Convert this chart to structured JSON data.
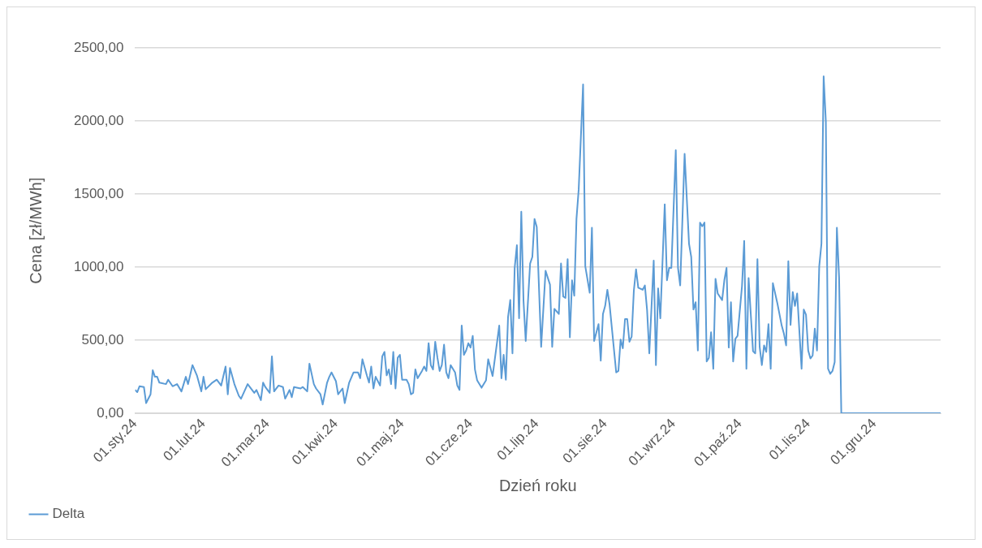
{
  "chart_data": {
    "type": "line",
    "xlabel": "Dzień roku",
    "ylabel": "Cena [zł/MWh]",
    "legend": "bottom left",
    "grid": "y",
    "marker": "none",
    "line_style": "solid",
    "xlim": [
      "2024-01-01",
      "2024-12-31"
    ],
    "xticks": [
      {
        "value": "2024-01-01",
        "label": "01.sty.24"
      },
      {
        "value": "2024-02-01",
        "label": "01.lut.24"
      },
      {
        "value": "2024-03-01",
        "label": "01.mar.24"
      },
      {
        "value": "2024-04-01",
        "label": "01.kwi.24"
      },
      {
        "value": "2024-05-01",
        "label": "01.maj.24"
      },
      {
        "value": "2024-06-01",
        "label": "01.cze.24"
      },
      {
        "value": "2024-07-01",
        "label": "01.lip.24"
      },
      {
        "value": "2024-08-01",
        "label": "01.sie.24"
      },
      {
        "value": "2024-09-01",
        "label": "01.wrz.24"
      },
      {
        "value": "2024-10-01",
        "label": "01.paź.24"
      },
      {
        "value": "2024-11-01",
        "label": "01.lis.24"
      },
      {
        "value": "2024-12-01",
        "label": "01.gru.24"
      }
    ],
    "ylim": [
      0,
      2500
    ],
    "yticks": [
      {
        "value": 0,
        "label": "0,00"
      },
      {
        "value": 500,
        "label": "500,00"
      },
      {
        "value": 1000,
        "label": "1000,00"
      },
      {
        "value": 1500,
        "label": "1500,00"
      },
      {
        "value": 2000,
        "label": "2000,00"
      },
      {
        "value": 2500,
        "label": "2500,00"
      }
    ],
    "series": [
      {
        "name": "Delta",
        "color": "#5b9bd5",
        "x": [
          "2024-01-01",
          "2024-01-02",
          "2024-01-03",
          "2024-01-05",
          "2024-01-06",
          "2024-01-08",
          "2024-01-09",
          "2024-01-10",
          "2024-01-11",
          "2024-01-12",
          "2024-01-15",
          "2024-01-16",
          "2024-01-18",
          "2024-01-20",
          "2024-01-22",
          "2024-01-24",
          "2024-01-25",
          "2024-01-27",
          "2024-01-29",
          "2024-01-31",
          "2024-02-01",
          "2024-02-02",
          "2024-02-05",
          "2024-02-07",
          "2024-02-09",
          "2024-02-11",
          "2024-02-12",
          "2024-02-13",
          "2024-02-15",
          "2024-02-17",
          "2024-02-18",
          "2024-02-21",
          "2024-02-24",
          "2024-02-25",
          "2024-02-27",
          "2024-02-28",
          "2024-02-29",
          "2024-03-02",
          "2024-03-03",
          "2024-03-04",
          "2024-03-06",
          "2024-03-08",
          "2024-03-09",
          "2024-03-11",
          "2024-03-12",
          "2024-03-13",
          "2024-03-16",
          "2024-03-17",
          "2024-03-19",
          "2024-03-20",
          "2024-03-22",
          "2024-03-23",
          "2024-03-25",
          "2024-03-26",
          "2024-03-28",
          "2024-03-29",
          "2024-03-30",
          "2024-04-01",
          "2024-04-02",
          "2024-04-04",
          "2024-04-05",
          "2024-04-07",
          "2024-04-09",
          "2024-04-11",
          "2024-04-12",
          "2024-04-13",
          "2024-04-15",
          "2024-04-16",
          "2024-04-17",
          "2024-04-18",
          "2024-04-19",
          "2024-04-21",
          "2024-04-22",
          "2024-04-23",
          "2024-04-24",
          "2024-04-25",
          "2024-04-26",
          "2024-04-27",
          "2024-04-28",
          "2024-04-29",
          "2024-04-30",
          "2024-05-01",
          "2024-05-03",
          "2024-05-04",
          "2024-05-05",
          "2024-05-06",
          "2024-05-07",
          "2024-05-08",
          "2024-05-10",
          "2024-05-11",
          "2024-05-12",
          "2024-05-13",
          "2024-05-14",
          "2024-05-15",
          "2024-05-16",
          "2024-05-17",
          "2024-05-18",
          "2024-05-19",
          "2024-05-20",
          "2024-05-21",
          "2024-05-22",
          "2024-05-23",
          "2024-05-25",
          "2024-05-26",
          "2024-05-27",
          "2024-05-28",
          "2024-05-29",
          "2024-05-30",
          "2024-05-31",
          "2024-06-01",
          "2024-06-02",
          "2024-06-03",
          "2024-06-04",
          "2024-06-06",
          "2024-06-08",
          "2024-06-09",
          "2024-06-11",
          "2024-06-14",
          "2024-06-15",
          "2024-06-16",
          "2024-06-17",
          "2024-06-18",
          "2024-06-19",
          "2024-06-20",
          "2024-06-21",
          "2024-06-22",
          "2024-06-23",
          "2024-06-24",
          "2024-06-25",
          "2024-06-26",
          "2024-06-28",
          "2024-06-29",
          "2024-06-30",
          "2024-07-01",
          "2024-07-03",
          "2024-07-05",
          "2024-07-07",
          "2024-07-08",
          "2024-07-09",
          "2024-07-11",
          "2024-07-12",
          "2024-07-13",
          "2024-07-14",
          "2024-07-15",
          "2024-07-16",
          "2024-07-17",
          "2024-07-18",
          "2024-07-19",
          "2024-07-20",
          "2024-07-22",
          "2024-07-23",
          "2024-07-25",
          "2024-07-26",
          "2024-07-27",
          "2024-07-29",
          "2024-07-30",
          "2024-07-31",
          "2024-08-01",
          "2024-08-02",
          "2024-08-03",
          "2024-08-06",
          "2024-08-07",
          "2024-08-08",
          "2024-08-09",
          "2024-08-10",
          "2024-08-11",
          "2024-08-12",
          "2024-08-13",
          "2024-08-14",
          "2024-08-15",
          "2024-08-16",
          "2024-08-18",
          "2024-08-19",
          "2024-08-20",
          "2024-08-21",
          "2024-08-23",
          "2024-08-24",
          "2024-08-25",
          "2024-08-26",
          "2024-08-28",
          "2024-08-29",
          "2024-08-30",
          "2024-08-31",
          "2024-09-02",
          "2024-09-03",
          "2024-09-04",
          "2024-09-06",
          "2024-09-08",
          "2024-09-09",
          "2024-09-10",
          "2024-09-11",
          "2024-09-12",
          "2024-09-13",
          "2024-09-14",
          "2024-09-15",
          "2024-09-16",
          "2024-09-17",
          "2024-09-18",
          "2024-09-19",
          "2024-09-20",
          "2024-09-21",
          "2024-09-23",
          "2024-09-24",
          "2024-09-25",
          "2024-09-26",
          "2024-09-27",
          "2024-09-28",
          "2024-09-29",
          "2024-09-30",
          "2024-10-02",
          "2024-10-03",
          "2024-10-04",
          "2024-10-05",
          "2024-10-07",
          "2024-10-08",
          "2024-10-09",
          "2024-10-10",
          "2024-10-11",
          "2024-10-12",
          "2024-10-13",
          "2024-10-14",
          "2024-10-15",
          "2024-10-16",
          "2024-10-18",
          "2024-10-20",
          "2024-10-21",
          "2024-10-22",
          "2024-10-23",
          "2024-10-24",
          "2024-10-25",
          "2024-10-26",
          "2024-10-27",
          "2024-10-29",
          "2024-10-30",
          "2024-10-31",
          "2024-11-01",
          "2024-11-02",
          "2024-11-03",
          "2024-11-04",
          "2024-11-05",
          "2024-11-06",
          "2024-11-07",
          "2024-11-08",
          "2024-11-09",
          "2024-11-10",
          "2024-11-11",
          "2024-11-12",
          "2024-11-13",
          "2024-11-14",
          "2024-11-15",
          "2024-11-16",
          "2024-12-31"
        ],
        "values": [
          160,
          145,
          185,
          180,
          70,
          130,
          295,
          250,
          250,
          210,
          200,
          230,
          185,
          200,
          150,
          250,
          200,
          330,
          260,
          150,
          250,
          165,
          210,
          230,
          190,
          320,
          130,
          310,
          200,
          120,
          100,
          200,
          140,
          160,
          90,
          210,
          180,
          140,
          390,
          150,
          190,
          180,
          100,
          160,
          110,
          180,
          170,
          180,
          150,
          340,
          200,
          170,
          130,
          60,
          210,
          250,
          280,
          220,
          130,
          170,
          70,
          210,
          280,
          280,
          240,
          370,
          260,
          210,
          320,
          170,
          250,
          190,
          390,
          420,
          260,
          300,
          200,
          420,
          170,
          380,
          400,
          230,
          230,
          200,
          130,
          140,
          300,
          240,
          290,
          320,
          290,
          480,
          330,
          300,
          490,
          380,
          290,
          330,
          470,
          280,
          240,
          330,
          280,
          190,
          160,
          600,
          400,
          430,
          480,
          450,
          530,
          300,
          225,
          175,
          225,
          370,
          255,
          600,
          240,
          400,
          230,
          660,
          775,
          410,
          995,
          1150,
          650,
          1380,
          770,
          495,
          1025,
          1070,
          1330,
          1275,
          455,
          975,
          880,
          455,
          715,
          680,
          1025,
          800,
          790,
          1055,
          520,
          910,
          805,
          1330,
          1530,
          2250,
          1005,
          825,
          1270,
          495,
          610,
          360,
          680,
          735,
          845,
          745,
          280,
          290,
          505,
          445,
          645,
          645,
          490,
          525,
          840,
          985,
          860,
          845,
          875,
          705,
          410,
          1045,
          330,
          855,
          650,
          1430,
          910,
          995,
          995,
          1800,
          995,
          875,
          1775,
          1160,
          1070,
          710,
          760,
          430,
          1305,
          1280,
          1305,
          355,
          380,
          555,
          305,
          920,
          820,
          775,
          910,
          995,
          450,
          760,
          355,
          510,
          530,
          870,
          1180,
          305,
          925,
          425,
          410,
          1055,
          455,
          330,
          465,
          420,
          610,
          305,
          890,
          755,
          600,
          545,
          465,
          1040,
          605,
          830,
          735,
          820,
          305,
          710,
          675,
          430,
          375,
          395,
          580,
          430,
          1005,
          1160,
          2305,
          1995,
          305,
          270,
          290,
          350,
          1270,
          930,
          0,
          0
        ]
      }
    ]
  }
}
